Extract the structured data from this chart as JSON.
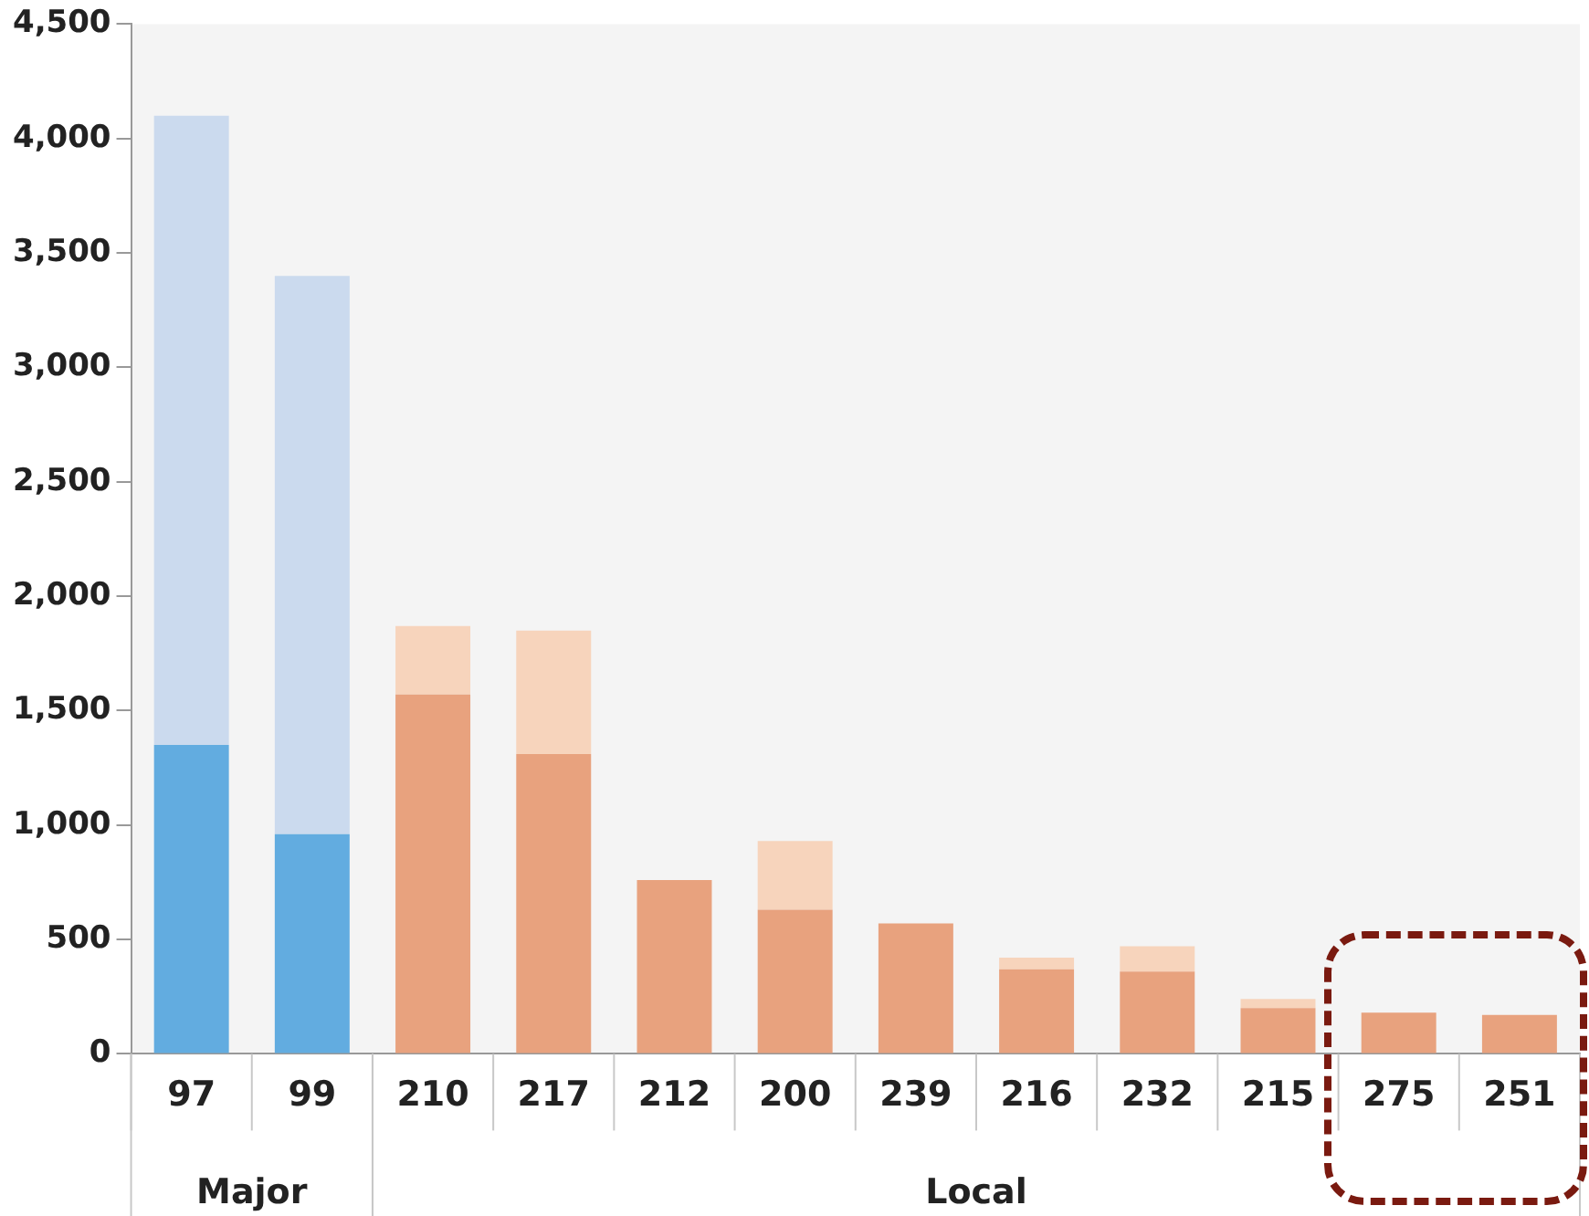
{
  "chart_data": {
    "type": "bar",
    "stacked": true,
    "grid": false,
    "legend": false,
    "categories": [
      "97",
      "99",
      "210",
      "217",
      "212",
      "200",
      "239",
      "216",
      "232",
      "215",
      "275",
      "251"
    ],
    "series": [
      {
        "colors": [
          "#62ace0",
          "#62ace0",
          "#e8a27e",
          "#e8a27e",
          "#e8a27e",
          "#e8a27e",
          "#e8a27e",
          "#e8a27e",
          "#e8a27e",
          "#e8a27e",
          "#e8a27e",
          "#e8a27e"
        ],
        "values": [
          1350,
          960,
          1570,
          1310,
          760,
          630,
          570,
          370,
          360,
          200,
          180,
          170
        ]
      },
      {
        "colors": [
          "#cbdaee",
          "#cbdaee",
          "#f7d4bc",
          "#f7d4bc",
          "#f7d4bc",
          "#f7d4bc",
          "#f7d4bc",
          "#f7d4bc",
          "#f7d4bc",
          "#f7d4bc",
          "#f7d4bc",
          "#f7d4bc"
        ],
        "values": [
          2750,
          2440,
          300,
          540,
          0,
          300,
          0,
          50,
          110,
          40,
          0,
          0
        ]
      }
    ],
    "ylim": [
      0,
      4500
    ],
    "yticks": [
      0,
      500,
      {
        "value": 1000,
        "label": "1,000"
      },
      {
        "value": 1500,
        "label": "1,500"
      },
      {
        "value": 2000,
        "label": "2,000"
      },
      {
        "value": 2500,
        "label": "2,500"
      },
      {
        "value": 3000,
        "label": "3,000"
      },
      {
        "value": 3500,
        "label": "3,500"
      },
      {
        "value": 4000,
        "label": "4,000"
      },
      {
        "value": 4500,
        "label": "4,500"
      }
    ],
    "annotations": [
      "Major",
      "Local"
    ]
  }
}
